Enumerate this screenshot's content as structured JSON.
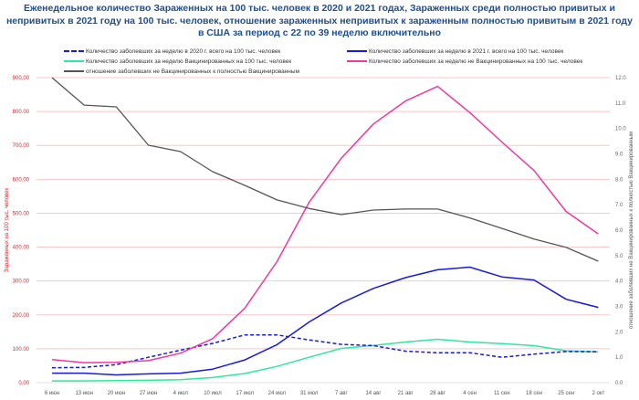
{
  "title_lines": [
    "Еженедельное количество Зараженных на 100 тыс. человек в 2020 и 2021 годах, Зараженных среди полностью привитых и",
    "непривитых в 2021 году на 100 тыс. человек, отношение зараженных непривитых к зараженным полностью привитым в 2021 году",
    "в США за период с 22 по 39 неделю включительно"
  ],
  "chart_data": {
    "type": "line",
    "title": "Еженедельное количество Зараженных на 100 тыс. человек в 2020 и 2021 годах, Зараженных среди полностью привитых и непривитых в 2021 году на 100 тыс. человек, отношение зараженных непривитых к зараженным полностью привитым в 2021 году в США за период с 22 по 39 неделю включительно",
    "categories": [
      "6 июн",
      "13 июн",
      "20 июн",
      "27 июн",
      "4 июл",
      "10 июл",
      "17 июл",
      "24 июл",
      "31 июл",
      "7 авг",
      "14 авг",
      "21 авг",
      "28 авг",
      "4 сен",
      "11 сен",
      "18 сен",
      "25 сен",
      "2 окт"
    ],
    "ylabel": "Зараженных на 100 тыс. человек",
    "y2label": "отношение заболевших не Вакцинированных к полностью Вакцинированным",
    "ylim": [
      0,
      900
    ],
    "y2lim": [
      0,
      12
    ],
    "yticks": [
      "0.00",
      "100.00",
      "200.00",
      "300.00",
      "400.00",
      "500.00",
      "600.00",
      "700.00",
      "800.00",
      "900.00"
    ],
    "y2ticks": [
      "0.0",
      "1.0",
      "2.0",
      "3.0",
      "4.0",
      "5.0",
      "6.0",
      "7.0",
      "8.0",
      "9.0",
      "10.0",
      "11.0",
      "12.0"
    ],
    "grid": true,
    "legend_position": "top",
    "series": [
      {
        "name": "Количество заболевших за неделю в 2020 г. всего на 100 тыс. человек",
        "axis": "left",
        "color": "#1a1adb",
        "dashed": true,
        "values": [
          44,
          45,
          53,
          75,
          96,
          116,
          141,
          141,
          126,
          113,
          109,
          93,
          88,
          88,
          75,
          84,
          92,
          91
        ]
      },
      {
        "name": "Количество заболевших за неделю в 2021 г. всего на 100 тыс. человек",
        "axis": "left",
        "color": "#1a1adb",
        "dashed": false,
        "values": [
          28,
          28,
          23,
          26,
          28,
          40,
          67,
          112,
          179,
          235,
          278,
          310,
          333,
          341,
          312,
          303,
          246,
          222
        ]
      },
      {
        "name": "Количество заболевших за неделю Вакцинированных на 100 тыс. человек",
        "axis": "left",
        "color": "#2ee8a0",
        "dashed": false,
        "values": [
          5,
          5,
          6,
          7,
          9,
          15,
          27,
          48,
          75,
          101,
          110,
          120,
          128,
          120,
          115,
          109,
          94,
          91
        ]
      },
      {
        "name": "Количество заболевших за неделю не Вакцинированных на 100 тыс. человек",
        "axis": "left",
        "color": "#f0399c",
        "dashed": false,
        "values": [
          68,
          59,
          60,
          65,
          87,
          130,
          220,
          357,
          532,
          662,
          763,
          831,
          874,
          797,
          710,
          626,
          505,
          439
        ]
      },
      {
        "name": "отношение заболевших не Вакцинированных к полностью Вакцинированным",
        "axis": "right",
        "color": "#555555",
        "dashed": false,
        "values": [
          12.0,
          10.92,
          10.85,
          9.34,
          9.09,
          8.3,
          7.76,
          7.19,
          6.85,
          6.61,
          6.79,
          6.83,
          6.83,
          6.48,
          6.07,
          5.65,
          5.32,
          4.78
        ]
      }
    ]
  },
  "colors": {
    "title": "#1f4e8c",
    "left_axis": "#e8202a",
    "right_axis": "#666666",
    "grid": "#f8c8c8"
  }
}
